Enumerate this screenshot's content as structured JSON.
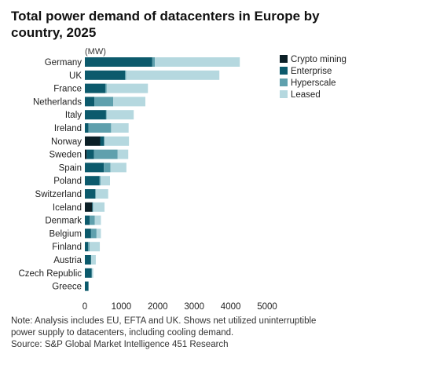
{
  "title": "Total power demand of datacenters in Europe by country, 2025",
  "notes": [
    "Note: Analysis includes EU, EFTA and UK. Shows net utilized uninterruptible",
    "power supply to datacenters, including cooling demand.",
    "Source: S&P Global Market Intelligence 451 Research"
  ],
  "colors": {
    "Crypto mining": "#0b1f26",
    "Enterprise": "#0c5a6c",
    "Hyperscale": "#5fa0ad",
    "Leased": "#b5d8df"
  },
  "chart_data": {
    "type": "bar",
    "orientation": "horizontal",
    "stacked": true,
    "unit_label": "(MW)",
    "categories": [
      "Germany",
      "UK",
      "France",
      "Netherlands",
      "Italy",
      "Ireland",
      "Norway",
      "Sweden",
      "Spain",
      "Poland",
      "Switzerland",
      "Iceland",
      "Denmark",
      "Belgium",
      "Finland",
      "Austria",
      "Czech Republic",
      "Greece"
    ],
    "series": [
      {
        "name": "Crypto mining",
        "values": [
          0,
          0,
          0,
          0,
          0,
          0,
          420,
          50,
          0,
          0,
          0,
          200,
          0,
          0,
          0,
          0,
          0,
          0
        ]
      },
      {
        "name": "Enterprise",
        "values": [
          1850,
          1100,
          560,
          260,
          580,
          100,
          110,
          200,
          520,
          400,
          290,
          20,
          130,
          170,
          90,
          170,
          190,
          100
        ]
      },
      {
        "name": "Hyperscale",
        "values": [
          70,
          30,
          40,
          520,
          20,
          620,
          0,
          650,
          180,
          30,
          0,
          10,
          140,
          150,
          40,
          0,
          0,
          0
        ]
      },
      {
        "name": "Leased",
        "values": [
          2330,
          2560,
          1130,
          880,
          740,
          480,
          680,
          290,
          440,
          260,
          350,
          310,
          170,
          120,
          280,
          130,
          40,
          0
        ]
      }
    ],
    "xlim": [
      0,
      5000
    ],
    "xticks": [
      "0",
      "1000",
      "2000",
      "3000",
      "4000",
      "5000"
    ],
    "grid": false,
    "legend": "top-right"
  }
}
